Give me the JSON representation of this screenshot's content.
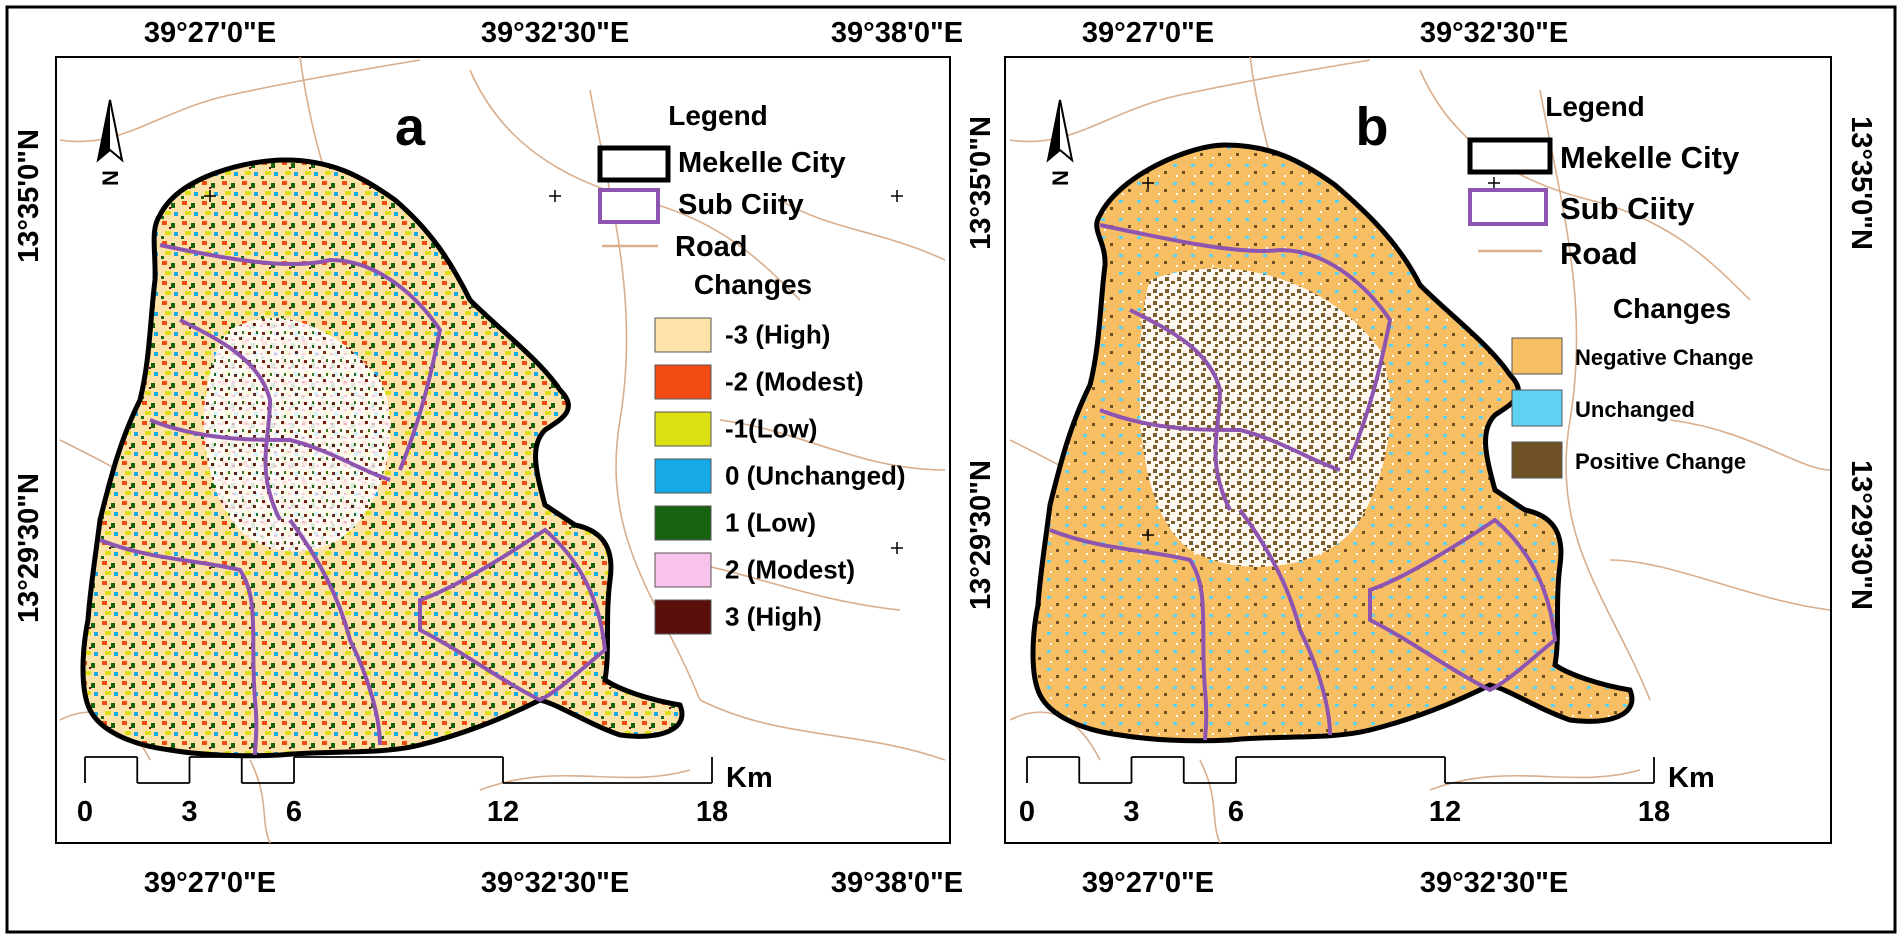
{
  "panels": [
    {
      "id": "a",
      "letter": "a",
      "lon_top": [
        "39°27'0\"E",
        "39°32'30\"E",
        "39°38'0\"E"
      ],
      "lon_bottom": [
        "39°27'0\"E",
        "39°32'30\"E",
        "39°38'0\"E"
      ],
      "lat_left": [
        "13°35'0\"N",
        "13°29'30\"N"
      ],
      "lat_right": [],
      "legend": {
        "title": "Legend",
        "items": [
          {
            "label": "Mekelle City",
            "kind": "city"
          },
          {
            "label": "Sub Ciity",
            "kind": "subcity"
          },
          {
            "label": "Road",
            "kind": "road"
          }
        ],
        "changes_title": "Changes",
        "changes": [
          {
            "label": "-3 (High)",
            "color": "#FDE3A7"
          },
          {
            "label": "-2 (Modest)",
            "color": "#F24A13"
          },
          {
            "label": "-1(Low)",
            "color": "#DDE011"
          },
          {
            "label": "0 (Unchanged)",
            "color": "#16A9E6"
          },
          {
            "label": "1 (Low)",
            "color": "#186312"
          },
          {
            "label": "2 (Modest)",
            "color": "#F9C2EC"
          },
          {
            "label": "3 (High)",
            "color": "#5A0F0B"
          }
        ]
      },
      "scale": {
        "ticks": [
          "0",
          "3",
          "6",
          "12",
          "18"
        ],
        "unit": "Km"
      }
    },
    {
      "id": "b",
      "letter": "b",
      "lon_top": [
        "39°27'0\"E",
        "39°32'30\"E"
      ],
      "lon_bottom": [
        "39°27'0\"E",
        "39°32'30\"E"
      ],
      "lat_left": [
        "13°35'0\"N",
        "13°29'30\"N"
      ],
      "lat_right": [
        "13°35'0\"N",
        "13°29'30\"N"
      ],
      "legend": {
        "title": "Legend",
        "items": [
          {
            "label": "Mekelle City",
            "kind": "city"
          },
          {
            "label": "Sub Ciity",
            "kind": "subcity"
          },
          {
            "label": "Road",
            "kind": "road"
          }
        ],
        "changes_title": "Changes",
        "changes": [
          {
            "label": "Negative Change",
            "color": "#F8BE63"
          },
          {
            "label": "Unchanged",
            "color": "#5FD1F2"
          },
          {
            "label": "Positive Change",
            "color": "#6E5226"
          }
        ]
      },
      "scale": {
        "ticks": [
          "0",
          "3",
          "6",
          "12",
          "18"
        ],
        "unit": "Km"
      }
    }
  ],
  "colors": {
    "road": "#D9AE8C",
    "city_boundary": "#000000",
    "subcity_boundary": "#8E55B0",
    "white_area": "#ffffff"
  }
}
